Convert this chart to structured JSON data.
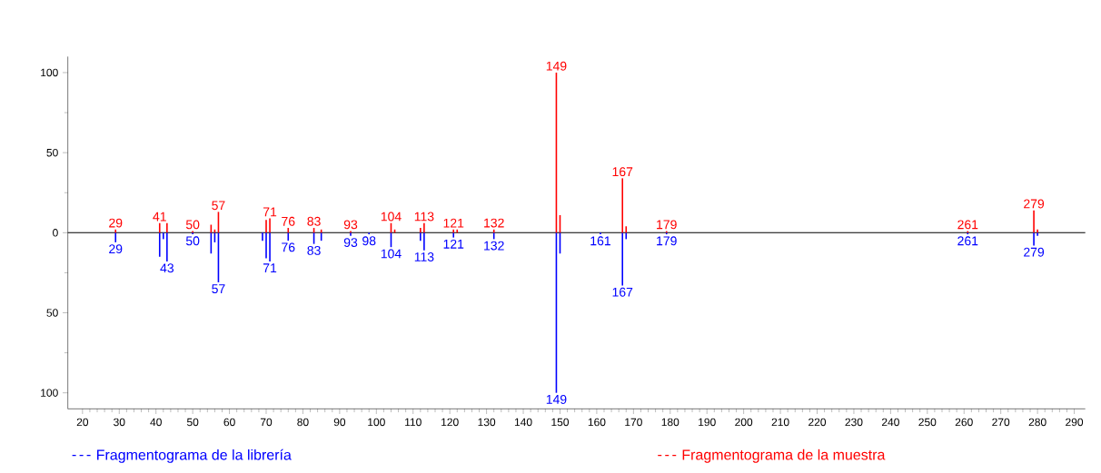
{
  "chart_data": {
    "type": "bar",
    "xlim": [
      16,
      293
    ],
    "ylim": [
      -110,
      110
    ],
    "xticks": [
      20,
      30,
      40,
      50,
      60,
      70,
      80,
      90,
      100,
      110,
      120,
      130,
      140,
      150,
      160,
      170,
      180,
      190,
      200,
      210,
      220,
      230,
      240,
      250,
      260,
      270,
      280,
      290
    ],
    "yticks": [
      {
        "value": -100,
        "label": "100"
      },
      {
        "value": -50,
        "label": "50"
      },
      0,
      50,
      100
    ],
    "legend": "bottom",
    "ref_lines": [
      {
        "axis": "y",
        "value": 0,
        "color": "#000000"
      }
    ],
    "series": [
      {
        "name": "Fragmentograma de la librería",
        "color": "#0000ff",
        "x": [
          29,
          41,
          42,
          43,
          50,
          55,
          56,
          57,
          69,
          70,
          71,
          76,
          83,
          85,
          93,
          98,
          104,
          112,
          113,
          121,
          132,
          149,
          150,
          161,
          167,
          168,
          179,
          261,
          279,
          280
        ],
        "values": [
          -6,
          -15,
          -4,
          -18,
          -1,
          -13,
          -6,
          -31,
          -5,
          -16,
          -18,
          -5,
          -7,
          -5,
          -2,
          -1,
          -9,
          -5,
          -11,
          -3,
          -4,
          -100,
          -13,
          -1,
          -33,
          -4,
          -1,
          -1,
          -8,
          -2
        ]
      },
      {
        "name": "Fragmentograma de la muestra",
        "color": "#ff0000",
        "x": [
          29,
          41,
          43,
          50,
          55,
          56,
          57,
          70,
          71,
          76,
          83,
          85,
          93,
          104,
          105,
          112,
          113,
          121,
          122,
          132,
          149,
          150,
          167,
          168,
          179,
          261,
          279,
          280
        ],
        "values": [
          2,
          6,
          6,
          1,
          5,
          2,
          13,
          8,
          9,
          3,
          3,
          2,
          1,
          6,
          2,
          3,
          6,
          2,
          2,
          2,
          100,
          11,
          34,
          4,
          1,
          1,
          14,
          2
        ]
      }
    ],
    "annotations": [
      {
        "text": "29",
        "x": 29,
        "y": 2
      },
      {
        "text": "41",
        "x": 41,
        "y": 6
      },
      {
        "text": "50",
        "x": 50,
        "y": 1
      },
      {
        "text": "57",
        "x": 57,
        "y": 13
      },
      {
        "text": "71",
        "x": 71,
        "y": 9
      },
      {
        "text": "76",
        "x": 76,
        "y": 3
      },
      {
        "text": "83",
        "x": 83,
        "y": 3
      },
      {
        "text": "93",
        "x": 93,
        "y": 1
      },
      {
        "text": "104",
        "x": 104,
        "y": 6
      },
      {
        "text": "113",
        "x": 113,
        "y": 6
      },
      {
        "text": "121",
        "x": 121,
        "y": 2
      },
      {
        "text": "132",
        "x": 132,
        "y": 2
      },
      {
        "text": "149",
        "x": 149,
        "y": 100
      },
      {
        "text": "167",
        "x": 167,
        "y": 34
      },
      {
        "text": "179",
        "x": 179,
        "y": 1
      },
      {
        "text": "261",
        "x": 261,
        "y": 1
      },
      {
        "text": "279",
        "x": 279,
        "y": 14
      },
      {
        "text": "29",
        "x": 29,
        "y": -6
      },
      {
        "text": "43",
        "x": 43,
        "y": -18
      },
      {
        "text": "50",
        "x": 50,
        "y": -1
      },
      {
        "text": "57",
        "x": 57,
        "y": -31
      },
      {
        "text": "71",
        "x": 71,
        "y": -18
      },
      {
        "text": "76",
        "x": 76,
        "y": -5
      },
      {
        "text": "83",
        "x": 83,
        "y": -7
      },
      {
        "text": "93",
        "x": 93,
        "y": -2
      },
      {
        "text": "98",
        "x": 98,
        "y": -1
      },
      {
        "text": "104",
        "x": 104,
        "y": -9
      },
      {
        "text": "113",
        "x": 113,
        "y": -11
      },
      {
        "text": "121",
        "x": 121,
        "y": -3
      },
      {
        "text": "132",
        "x": 132,
        "y": -4
      },
      {
        "text": "149",
        "x": 149,
        "y": -100
      },
      {
        "text": "161",
        "x": 161,
        "y": -1
      },
      {
        "text": "167",
        "x": 167,
        "y": -33
      },
      {
        "text": "179",
        "x": 179,
        "y": -1
      },
      {
        "text": "261",
        "x": 261,
        "y": -1
      },
      {
        "text": "279",
        "x": 279,
        "y": -8
      }
    ]
  }
}
